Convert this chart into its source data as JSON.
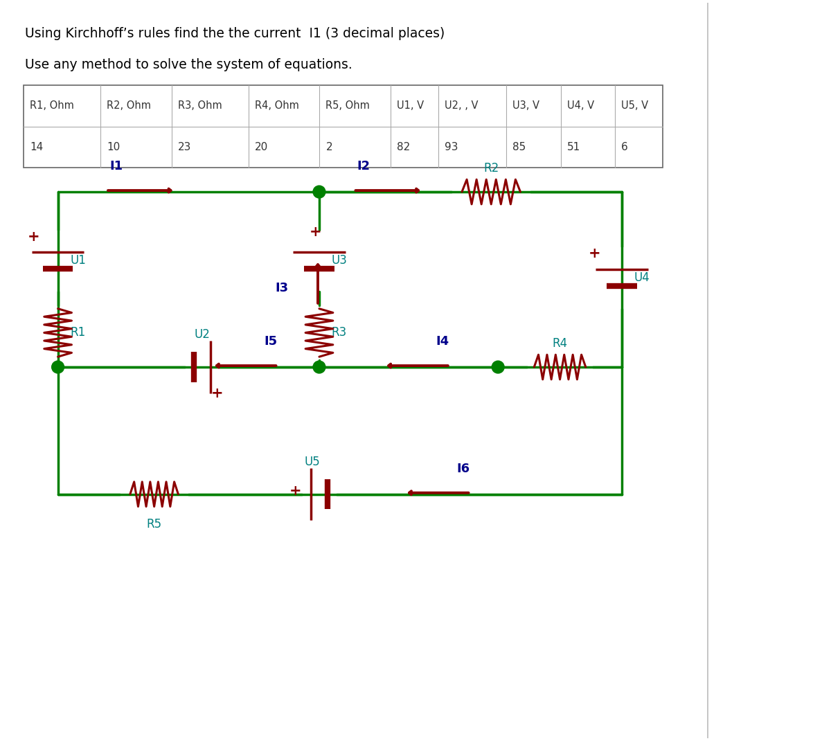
{
  "title1": "Using Kirchhoff’s rules find the the current  I1 (3 decimal places)",
  "title2": "Use any method to solve the system of equations.",
  "table_headers": [
    "R1, Ohm",
    "R2, Ohm",
    "R3, Ohm",
    "R4, Ohm",
    "R5, Ohm",
    "U1, V",
    "U2, , V",
    "U3, V",
    "U4, V",
    "U5, V"
  ],
  "table_values": [
    "14",
    "10",
    "23",
    "20",
    "2",
    "82",
    "93",
    "85",
    "51",
    "6"
  ],
  "wire_color": "#008000",
  "component_color": "#8b0000",
  "label_color": "#008080",
  "current_label_color": "#00008b",
  "bg_color": "#ffffff",
  "page_line_color": "#bbbbbb",
  "table_border_color": "#666666",
  "table_text_color": "#333333"
}
